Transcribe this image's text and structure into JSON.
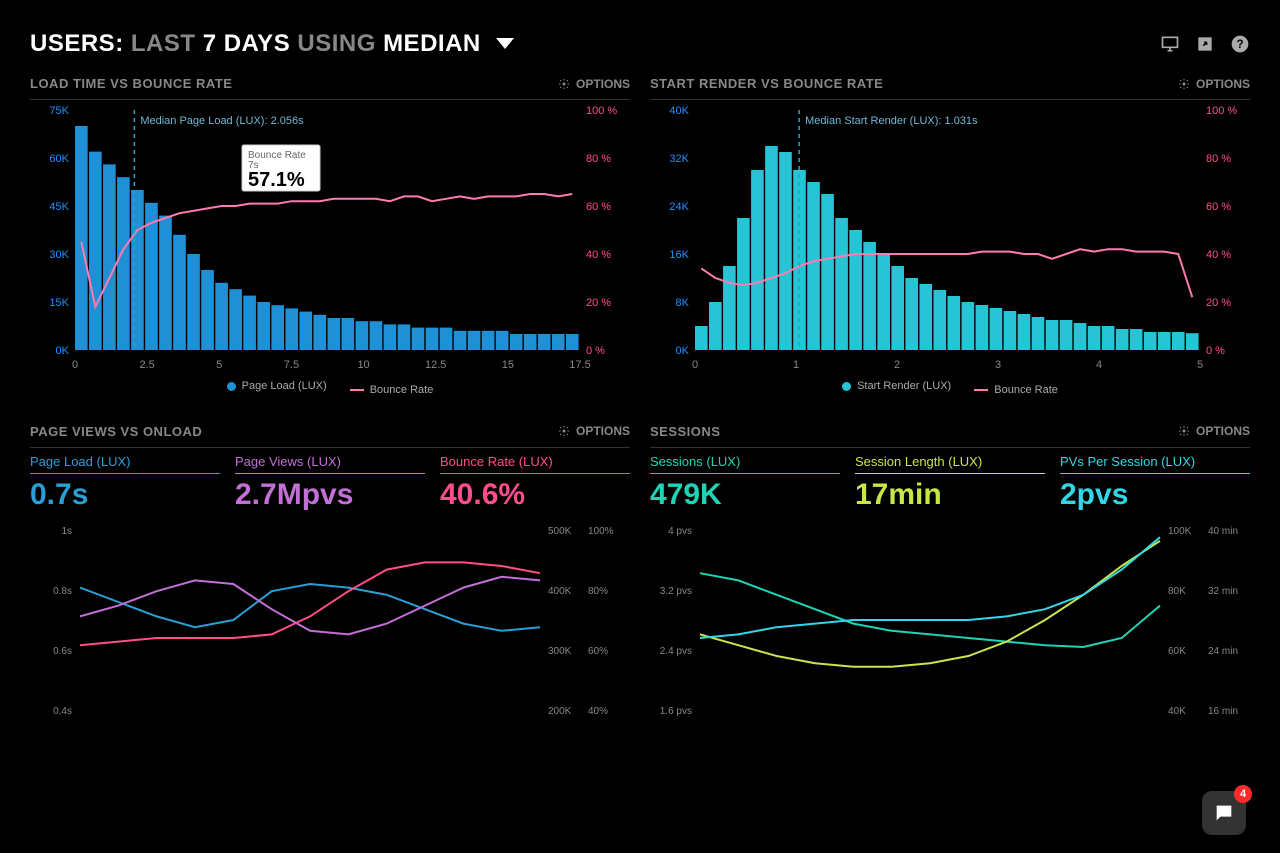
{
  "header": {
    "label_users": "USERS:",
    "label_last": "LAST",
    "label_days": "7 DAYS",
    "label_using": "USING",
    "label_median": "MEDIAN"
  },
  "options_label": "OPTIONS",
  "panels": {
    "loadtime": {
      "title": "LOAD TIME VS BOUNCE RATE",
      "median_label": "Median Page Load (LUX): 2.056s",
      "y_left": {
        "max": 75,
        "step": 15,
        "unit": "K",
        "color": "#1f8fd6"
      },
      "y_right": {
        "max": 100,
        "step": 20,
        "unit": " %",
        "color": "#ff4d8d"
      },
      "x": {
        "ticks": [
          0,
          2.5,
          5,
          7.5,
          10,
          12.5,
          15,
          17.5
        ]
      },
      "median_x": 2.056,
      "bars": [
        70,
        62,
        58,
        54,
        50,
        46,
        42,
        36,
        30,
        25,
        21,
        19,
        17,
        15,
        14,
        13,
        12,
        11,
        10,
        10,
        9,
        9,
        8,
        8,
        7,
        7,
        7,
        6,
        6,
        6,
        6,
        5,
        5,
        5,
        5,
        5
      ],
      "bounce": [
        45,
        18,
        30,
        42,
        50,
        53,
        55,
        57,
        58,
        59,
        60,
        60,
        61,
        61,
        61,
        62,
        62,
        62,
        63,
        63,
        63,
        63,
        62,
        64,
        64,
        62,
        63,
        64,
        63,
        64,
        64,
        64,
        65,
        65,
        64,
        65
      ],
      "tooltip": {
        "title": "Bounce Rate",
        "sub": "7s",
        "value": "57.1%"
      },
      "legend": {
        "a": "Page Load (LUX)",
        "b": "Bounce Rate"
      }
    },
    "startrender": {
      "title": "START RENDER VS BOUNCE RATE",
      "median_label": "Median Start Render (LUX): 1.031s",
      "y_left": {
        "max": 40,
        "step": 8,
        "unit": "K",
        "color": "#27c4d6"
      },
      "y_right": {
        "max": 100,
        "step": 20,
        "unit": " %",
        "color": "#ff4d8d"
      },
      "x": {
        "ticks": [
          0,
          1,
          2,
          3,
          4,
          5
        ]
      },
      "median_x": 1.031,
      "bars": [
        4,
        8,
        14,
        22,
        30,
        34,
        33,
        30,
        28,
        26,
        22,
        20,
        18,
        16,
        14,
        12,
        11,
        10,
        9,
        8,
        7.5,
        7,
        6.5,
        6,
        5.5,
        5,
        5,
        4.5,
        4,
        4,
        3.5,
        3.5,
        3,
        3,
        3,
        2.8
      ],
      "bounce": [
        34,
        30,
        28,
        27,
        28,
        30,
        32,
        35,
        37,
        38,
        39,
        40,
        40,
        40,
        40,
        40,
        40,
        40,
        40,
        40,
        41,
        41,
        41,
        40,
        40,
        38,
        40,
        42,
        41,
        42,
        42,
        41,
        41,
        41,
        40,
        22
      ],
      "legend": {
        "a": "Start Render (LUX)",
        "b": "Bounce Rate"
      }
    },
    "pageviews": {
      "title": "PAGE VIEWS VS ONLOAD",
      "metrics": [
        {
          "label": "Page Load (LUX)",
          "value": "0.7s",
          "cls": "c-blue"
        },
        {
          "label": "Page Views (LUX)",
          "value": "2.7Mpvs",
          "cls": "c-purple"
        },
        {
          "label": "Bounce Rate (LUX)",
          "value": "40.6%",
          "cls": "c-pink"
        }
      ],
      "y_left": {
        "ticks": [
          "1s",
          "0.8s",
          "0.6s",
          "0.4s"
        ],
        "color": "#2a9fd6"
      },
      "y_mid": {
        "ticks": [
          "500K",
          "400K",
          "300K",
          "200K"
        ],
        "color": "#c26fd6"
      },
      "y_right": {
        "ticks": [
          "100%",
          "80%",
          "60%",
          "40%"
        ],
        "color": "#ff4d8d"
      },
      "series": {
        "blue": [
          68,
          60,
          52,
          46,
          50,
          66,
          70,
          68,
          64,
          56,
          48,
          44,
          46
        ],
        "purple": [
          52,
          58,
          66,
          72,
          70,
          56,
          44,
          42,
          48,
          58,
          68,
          74,
          72
        ],
        "pink": [
          36,
          38,
          40,
          40,
          40,
          42,
          52,
          66,
          78,
          82,
          82,
          80,
          76
        ]
      }
    },
    "sessions": {
      "title": "SESSIONS",
      "metrics": [
        {
          "label": "Sessions (LUX)",
          "value": "479K",
          "cls": "c-teal"
        },
        {
          "label": "Session Length (LUX)",
          "value": "17min",
          "cls": "c-lime"
        },
        {
          "label": "PVs Per Session (LUX)",
          "value": "2pvs",
          "cls": "c-cyan"
        }
      ],
      "y_left": {
        "ticks": [
          "4 pvs",
          "3.2 pvs",
          "2.4 pvs",
          "1.6 pvs"
        ],
        "color": "#1fd4b6"
      },
      "y_mid": {
        "ticks": [
          "100K",
          "80K",
          "60K",
          "40K"
        ],
        "color": "#33d6e6"
      },
      "y_right": {
        "ticks": [
          "40 min",
          "32 min",
          "24 min",
          "16 min"
        ],
        "color": "#c6e64a"
      },
      "series": {
        "teal": [
          76,
          72,
          64,
          56,
          48,
          44,
          42,
          40,
          38,
          36,
          35,
          40,
          58
        ],
        "lime": [
          42,
          36,
          30,
          26,
          24,
          24,
          26,
          30,
          38,
          50,
          64,
          80,
          94
        ],
        "cyan": [
          40,
          42,
          46,
          48,
          50,
          50,
          50,
          50,
          52,
          56,
          64,
          78,
          96
        ]
      }
    }
  },
  "notif_count": "4",
  "colors": {
    "bar": "#1f8fd6",
    "bar2": "#27c4d6",
    "bounce": "#ff7bb0"
  }
}
